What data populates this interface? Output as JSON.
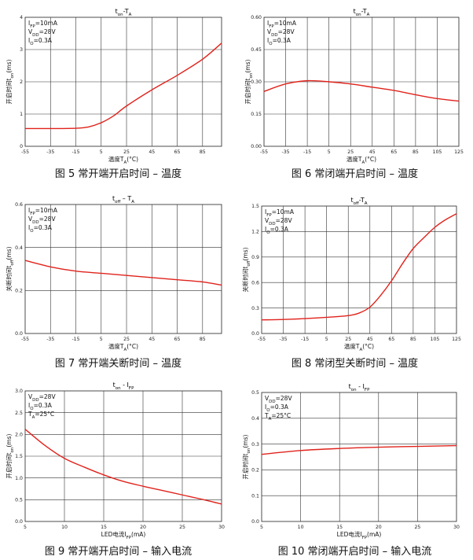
{
  "charts": [
    {
      "caption": "图 5 常开端开启时间 – 温度",
      "title": {
        "main": "t",
        "sub": "on",
        "rest": "-T",
        "sub2": "A"
      },
      "xlabel": {
        "pre": "温度T",
        "sub": "A",
        "post": "(°C)"
      },
      "ylabel": {
        "pre": "开启时间t",
        "sub": "on",
        "post": "(ms)"
      },
      "annotations": [
        {
          "main": "I",
          "sub": "FP",
          "rest": "=10mA"
        },
        {
          "main": "V",
          "sub": "DD",
          "rest": "=28V"
        },
        {
          "main": "I",
          "sub": "O",
          "rest": "=0.3A"
        }
      ],
      "xticks": [
        "-55",
        "-35",
        "-15",
        "5",
        "25",
        "45",
        "65",
        "85"
      ],
      "yticks": [
        "0",
        "1",
        "2",
        "3",
        "4"
      ],
      "series_color": "#e0231c"
    },
    {
      "caption": "图 6 常闭端开启时间 – 温度",
      "title": {
        "main": "t",
        "sub": "on",
        "rest": "-T",
        "sub2": "A"
      },
      "xlabel": {
        "pre": "温度T",
        "sub": "A",
        "post": "(°C)"
      },
      "ylabel": {
        "pre": "开启时间t",
        "sub": "on",
        "post": "(ms)"
      },
      "annotations": [
        {
          "main": "I",
          "sub": "FP",
          "rest": "=10mA"
        },
        {
          "main": "V",
          "sub": "DD",
          "rest": "=28V"
        },
        {
          "main": "I",
          "sub": "O",
          "rest": "=0.3A"
        }
      ],
      "xticks": [
        "-55",
        "-35",
        "-15",
        "5",
        "25",
        "45",
        "65",
        "85",
        "105",
        "125"
      ],
      "yticks": [
        "0.00",
        "0.15",
        "0.30",
        "0.45",
        "0.60"
      ],
      "series_color": "#e0231c"
    },
    {
      "caption": "图 7 常开端关断时间 – 温度",
      "title": {
        "main": "t",
        "sub": "off",
        "rest": " – T",
        "sub2": "A"
      },
      "xlabel": {
        "pre": "温度T",
        "sub": "A",
        "post": "(°C)"
      },
      "ylabel": {
        "pre": "关断时间t",
        "sub": "off",
        "post": "(ms)"
      },
      "annotations": [
        {
          "main": "I",
          "sub": "FP",
          "rest": "=10mA"
        },
        {
          "main": "V",
          "sub": "DD",
          "rest": "=28V"
        },
        {
          "main": "I",
          "sub": "O",
          "rest": "=0.3A"
        }
      ],
      "xticks": [
        "-55",
        "-35",
        "-15",
        "5",
        "25",
        "45",
        "65",
        "85"
      ],
      "yticks": [
        "0.0",
        "0.2",
        "0.4",
        "0.6"
      ],
      "series_color": "#e0231c"
    },
    {
      "caption": "图 8 常闭型关断时间 – 温度",
      "title": {
        "main": "t",
        "sub": "off",
        "rest": "-T",
        "sub2": "A"
      },
      "xlabel": {
        "pre": "温度T",
        "sub": "A",
        "post": "(°C)"
      },
      "ylabel": {
        "pre": "关断时间t",
        "sub": "off",
        "post": "(ms)"
      },
      "annotations": [
        {
          "main": "I",
          "sub": "FP",
          "rest": "=10mA"
        },
        {
          "main": "V",
          "sub": "DD",
          "rest": "=28V"
        },
        {
          "main": "I",
          "sub": "O",
          "rest": "=0.3A"
        }
      ],
      "xticks": [
        "-55",
        "-35",
        "-15",
        "5",
        "25",
        "45",
        "65",
        "85",
        "105",
        "125"
      ],
      "yticks": [
        "0.0",
        "0.3",
        "0.6",
        "0.9",
        "1.2",
        "1.5"
      ],
      "series_color": "#e0231c"
    },
    {
      "caption": "图 9 常开端开启时间 – 输入电流",
      "title": {
        "main": "t",
        "sub": "on",
        "rest": " - I",
        "sub2": "FP"
      },
      "xlabel": {
        "pre": "LED电流I",
        "sub": "FP",
        "post": "(mA)"
      },
      "ylabel": {
        "pre": "开启时间t",
        "sub": "on",
        "post": "(ms)"
      },
      "annotations": [
        {
          "main": "V",
          "sub": "DD",
          "rest": "=28V"
        },
        {
          "main": "I",
          "sub": "O",
          "rest": "=0.3A"
        },
        {
          "main": "T",
          "sub": "A",
          "rest": "=25°C"
        }
      ],
      "xticks": [
        "5",
        "10",
        "15",
        "20",
        "25",
        "30"
      ],
      "yticks": [
        "0.0",
        "0.5",
        "1.0",
        "1.5",
        "2.0",
        "2.5",
        "3.0"
      ],
      "series_color": "#e0231c"
    },
    {
      "caption": "图 10 常闭端开启时间 – 输入电流",
      "title": {
        "main": "t",
        "sub": "on",
        "rest": " - I",
        "sub2": "FP"
      },
      "xlabel": {
        "pre": "LED电流I",
        "sub": "FP",
        "post": "(mA)"
      },
      "ylabel": {
        "pre": "开启时间t",
        "sub": "on",
        "post": "(ms)"
      },
      "annotations": [
        {
          "main": "V",
          "sub": "DD",
          "rest": "=28V"
        },
        {
          "main": "I",
          "sub": "O",
          "rest": "=0.3A"
        },
        {
          "main": "T",
          "sub": "A",
          "rest": "=25°C"
        }
      ],
      "xticks": [
        "5",
        "10",
        "15",
        "20",
        "25",
        "30"
      ],
      "yticks": [
        "0.0",
        "0.1",
        "0.2",
        "0.3",
        "0.4",
        "0.5"
      ],
      "series_color": "#e0231c"
    }
  ],
  "chart_data": [
    {
      "type": "line",
      "xlim": [
        -55,
        100
      ],
      "ylim": [
        0,
        4
      ],
      "grid": true,
      "x": [
        -55,
        -35,
        -15,
        -5,
        5,
        15,
        25,
        45,
        65,
        85,
        100
      ],
      "series": [
        {
          "values": [
            0.55,
            0.55,
            0.56,
            0.6,
            0.73,
            0.95,
            1.25,
            1.75,
            2.2,
            2.7,
            3.2
          ]
        }
      ]
    },
    {
      "type": "line",
      "xlim": [
        -55,
        125
      ],
      "ylim": [
        0,
        0.6
      ],
      "grid": true,
      "x": [
        -55,
        -35,
        -15,
        5,
        25,
        45,
        65,
        85,
        105,
        125
      ],
      "series": [
        {
          "values": [
            0.255,
            0.29,
            0.305,
            0.3,
            0.29,
            0.275,
            0.26,
            0.24,
            0.222,
            0.21
          ]
        }
      ]
    },
    {
      "type": "line",
      "xlim": [
        -55,
        100
      ],
      "ylim": [
        0,
        0.6
      ],
      "grid": true,
      "x": [
        -55,
        -35,
        -15,
        5,
        25,
        45,
        65,
        85,
        100
      ],
      "series": [
        {
          "values": [
            0.34,
            0.31,
            0.29,
            0.28,
            0.27,
            0.26,
            0.25,
            0.24,
            0.225
          ]
        }
      ]
    },
    {
      "type": "line",
      "xlim": [
        -55,
        125
      ],
      "ylim": [
        0,
        1.5
      ],
      "grid": true,
      "x": [
        -55,
        -35,
        -15,
        5,
        25,
        35,
        45,
        55,
        65,
        75,
        85,
        95,
        105,
        115,
        125
      ],
      "series": [
        {
          "values": [
            0.16,
            0.165,
            0.175,
            0.19,
            0.21,
            0.24,
            0.31,
            0.45,
            0.62,
            0.82,
            1.0,
            1.13,
            1.25,
            1.34,
            1.41
          ]
        }
      ]
    },
    {
      "type": "line",
      "xlim": [
        5,
        30
      ],
      "ylim": [
        0,
        3.0
      ],
      "grid": true,
      "x": [
        5,
        7.5,
        10,
        12.5,
        15,
        17.5,
        20,
        22.5,
        25,
        27.5,
        30
      ],
      "series": [
        {
          "values": [
            2.12,
            1.75,
            1.45,
            1.25,
            1.07,
            0.92,
            0.81,
            0.71,
            0.61,
            0.51,
            0.4
          ]
        }
      ]
    },
    {
      "type": "line",
      "xlim": [
        5,
        30
      ],
      "ylim": [
        0,
        0.5
      ],
      "grid": true,
      "x": [
        5,
        10,
        15,
        20,
        25,
        30
      ],
      "series": [
        {
          "values": [
            0.26,
            0.275,
            0.283,
            0.288,
            0.291,
            0.294
          ]
        }
      ]
    }
  ]
}
